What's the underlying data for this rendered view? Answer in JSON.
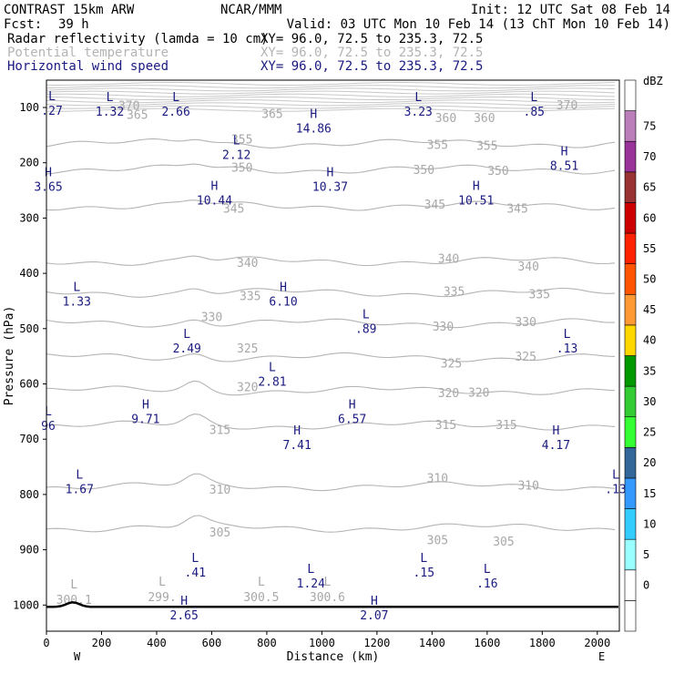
{
  "header": {
    "model": "CONTRAST 15km ARW",
    "center": "NCAR/MMM",
    "init": "Init: 12 UTC Sat 08 Feb 14",
    "fcst_label": "Fcst:",
    "fcst_value": "39 h",
    "valid": "Valid: 03 UTC Mon 10 Feb 14 (13 ChT Mon 10 Feb 14)",
    "fields": [
      {
        "name": "Radar reflectivity (lamda = 10 cm)",
        "xy": "XY=  96.0, 72.5 to 235.3, 72.5",
        "color": "#000000"
      },
      {
        "name": "Potential temperature",
        "xy": "XY=  96.0, 72.5 to 235.3, 72.5",
        "color": "#b4b4b4"
      },
      {
        "name": "Horizontal wind speed",
        "xy": "XY=  96.0, 72.5 to 235.3, 72.5",
        "color": "#1a1a80"
      }
    ]
  },
  "chart_data": {
    "type": "cross-section",
    "xlabel": "Distance (km)",
    "ylabel": "Pressure (hPa)",
    "xlim": [
      0,
      2080
    ],
    "ylim": [
      1050,
      60
    ],
    "x_ticks": [
      0,
      200,
      400,
      600,
      800,
      1000,
      1200,
      1400,
      1600,
      1800,
      2000
    ],
    "y_ticks": [
      100,
      200,
      300,
      400,
      500,
      600,
      700,
      800,
      900,
      1000
    ],
    "x_end_labels": {
      "left": "W",
      "right": "E"
    },
    "colorbar": {
      "unit": "dBZ",
      "levels": [
        "-",
        "0",
        "5",
        "10",
        "15",
        "20",
        "25",
        "30",
        "35",
        "40",
        "45",
        "50",
        "55",
        "60",
        "65",
        "70",
        "75",
        ""
      ],
      "colors": [
        "#ffffff",
        "#ffffff",
        "#99ffff",
        "#33ccff",
        "#3399ff",
        "#336699",
        "#33ff33",
        "#33cc33",
        "#009900",
        "#ffd700",
        "#ff9933",
        "#ff5500",
        "#ff2200",
        "#cc0000",
        "#993333",
        "#993399",
        "#bb7ebb",
        "#ffffff"
      ]
    },
    "theta_labels": [
      {
        "t": "370",
        "x": 300,
        "p": 96
      },
      {
        "t": "365",
        "x": 330,
        "p": 112
      },
      {
        "t": "365",
        "x": 820,
        "p": 111
      },
      {
        "t": "360",
        "x": 1450,
        "p": 118
      },
      {
        "t": "360",
        "x": 1590,
        "p": 118
      },
      {
        "t": "370",
        "x": 1890,
        "p": 95
      },
      {
        "t": "355",
        "x": 710,
        "p": 157
      },
      {
        "t": "355",
        "x": 1420,
        "p": 167
      },
      {
        "t": "355",
        "x": 1600,
        "p": 168
      },
      {
        "t": "350",
        "x": 710,
        "p": 208
      },
      {
        "t": "350",
        "x": 1370,
        "p": 212
      },
      {
        "t": "350",
        "x": 1640,
        "p": 214
      },
      {
        "t": "345",
        "x": 680,
        "p": 282
      },
      {
        "t": "345",
        "x": 1410,
        "p": 275
      },
      {
        "t": "345",
        "x": 1710,
        "p": 282
      },
      {
        "t": "340",
        "x": 730,
        "p": 380
      },
      {
        "t": "340",
        "x": 1460,
        "p": 373
      },
      {
        "t": "340",
        "x": 1750,
        "p": 387
      },
      {
        "t": "335",
        "x": 740,
        "p": 440
      },
      {
        "t": "335",
        "x": 1480,
        "p": 432
      },
      {
        "t": "335",
        "x": 1790,
        "p": 437
      },
      {
        "t": "330",
        "x": 600,
        "p": 478
      },
      {
        "t": "330",
        "x": 1440,
        "p": 495
      },
      {
        "t": "330",
        "x": 1740,
        "p": 487
      },
      {
        "t": "325",
        "x": 730,
        "p": 535
      },
      {
        "t": "325",
        "x": 1470,
        "p": 562
      },
      {
        "t": "325",
        "x": 1740,
        "p": 550
      },
      {
        "t": "320",
        "x": 730,
        "p": 605
      },
      {
        "t": "320",
        "x": 1460,
        "p": 616
      },
      {
        "t": "320",
        "x": 1570,
        "p": 615
      },
      {
        "t": "315",
        "x": 630,
        "p": 682
      },
      {
        "t": "315",
        "x": 1450,
        "p": 673
      },
      {
        "t": "315",
        "x": 1670,
        "p": 673
      },
      {
        "t": "310",
        "x": 630,
        "p": 790
      },
      {
        "t": "310",
        "x": 1420,
        "p": 770
      },
      {
        "t": "310",
        "x": 1750,
        "p": 783
      },
      {
        "t": "305",
        "x": 630,
        "p": 868
      },
      {
        "t": "305",
        "x": 1420,
        "p": 882
      },
      {
        "t": "305",
        "x": 1660,
        "p": 884
      }
    ],
    "theta_extrema": [
      {
        "k": "L",
        "v": "300.1",
        "x": 100,
        "p": 990
      },
      {
        "k": "L",
        "v": "299.",
        "x": 420,
        "p": 985
      },
      {
        "k": "L",
        "v": "300.5",
        "x": 780,
        "p": 985
      },
      {
        "k": "L",
        "v": "300.6",
        "x": 1020,
        "p": 985
      }
    ],
    "wind_extrema": [
      {
        "k": "L",
        "v": ".27",
        "x": 20,
        "p": 90
      },
      {
        "k": "L",
        "v": "1.32",
        "x": 230,
        "p": 92
      },
      {
        "k": "L",
        "v": "2.66",
        "x": 470,
        "p": 92
      },
      {
        "k": "H",
        "v": "14.86",
        "x": 970,
        "p": 122
      },
      {
        "k": "L",
        "v": "3.23",
        "x": 1350,
        "p": 92
      },
      {
        "k": "L",
        "v": ".85",
        "x": 1770,
        "p": 92
      },
      {
        "k": "L",
        "v": "2.12",
        "x": 690,
        "p": 170
      },
      {
        "k": "H",
        "v": "8.51",
        "x": 1880,
        "p": 190
      },
      {
        "k": "H",
        "v": "3.65",
        "x": 0,
        "p": 228
      },
      {
        "k": "H",
        "v": "10.44",
        "x": 610,
        "p": 252
      },
      {
        "k": "H",
        "v": "10.37",
        "x": 1030,
        "p": 228
      },
      {
        "k": "H",
        "v": "10.51",
        "x": 1560,
        "p": 252
      },
      {
        "k": "L",
        "v": "1.33",
        "x": 110,
        "p": 435
      },
      {
        "k": "H",
        "v": "6.10",
        "x": 860,
        "p": 435
      },
      {
        "k": "L",
        "v": ".89",
        "x": 1160,
        "p": 485
      },
      {
        "k": "L",
        "v": "2.49",
        "x": 510,
        "p": 520
      },
      {
        "k": "L",
        "v": "2.81",
        "x": 820,
        "p": 580
      },
      {
        "k": "L",
        "v": ".13",
        "x": 1890,
        "p": 520
      },
      {
        "k": "L",
        "v": "96",
        "x": 0,
        "p": 660
      },
      {
        "k": "H",
        "v": "9.71",
        "x": 360,
        "p": 648
      },
      {
        "k": "H",
        "v": "6.57",
        "x": 1110,
        "p": 648
      },
      {
        "k": "H",
        "v": "7.41",
        "x": 910,
        "p": 695
      },
      {
        "k": "H",
        "v": "4.17",
        "x": 1850,
        "p": 695
      },
      {
        "k": "L",
        "v": "1.67",
        "x": 120,
        "p": 775
      },
      {
        "k": "L",
        "v": ".13",
        "x": 2070,
        "p": 775
      },
      {
        "k": "L",
        "v": ".41",
        "x": 540,
        "p": 925
      },
      {
        "k": "L",
        "v": "1.24",
        "x": 960,
        "p": 945
      },
      {
        "k": "L",
        "v": ".15",
        "x": 1370,
        "p": 925
      },
      {
        "k": "L",
        "v": ".16",
        "x": 1600,
        "p": 945
      },
      {
        "k": "H",
        "v": "2.65",
        "x": 500,
        "p": 1003
      },
      {
        "k": "H",
        "v": "2.07",
        "x": 1190,
        "p": 1003
      }
    ]
  }
}
